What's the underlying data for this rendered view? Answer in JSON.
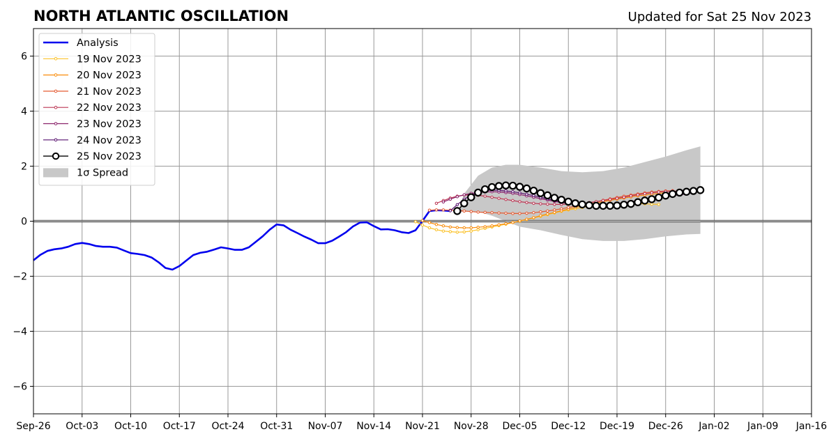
{
  "chart_data": {
    "type": "line",
    "title": "NORTH ATLANTIC OSCILLATION",
    "subtitle": "Updated for Sat 25 Nov 2023",
    "xlabel": "",
    "ylabel": "",
    "x_range": [
      "2023-09-26",
      "2024-01-16"
    ],
    "ylim": [
      -7,
      7
    ],
    "x_ticks": [
      "Sep-26",
      "Oct-03",
      "Oct-10",
      "Oct-17",
      "Oct-24",
      "Oct-31",
      "Nov-07",
      "Nov-14",
      "Nov-21",
      "Nov-28",
      "Dec-05",
      "Dec-12",
      "Dec-19",
      "Dec-26",
      "Jan-02",
      "Jan-09",
      "Jan-16"
    ],
    "y_ticks": [
      "6",
      "4",
      "2",
      "0",
      "−2",
      "−4",
      "−6"
    ],
    "y_tick_values": [
      6,
      4,
      2,
      0,
      -2,
      -4,
      -6
    ],
    "grid": true,
    "legend_position": "top-left",
    "series": [
      {
        "name": "Analysis",
        "color": "#0000ee",
        "x": [
          "2023-09-26",
          "2023-09-27",
          "2023-09-28",
          "2023-09-29",
          "2023-09-30",
          "2023-10-01",
          "2023-10-02",
          "2023-10-03",
          "2023-10-04",
          "2023-10-05",
          "2023-10-06",
          "2023-10-07",
          "2023-10-08",
          "2023-10-09",
          "2023-10-10",
          "2023-10-11",
          "2023-10-12",
          "2023-10-13",
          "2023-10-14",
          "2023-10-15",
          "2023-10-16",
          "2023-10-17",
          "2023-10-18",
          "2023-10-19",
          "2023-10-20",
          "2023-10-21",
          "2023-10-22",
          "2023-10-23",
          "2023-10-24",
          "2023-10-25",
          "2023-10-26",
          "2023-10-27",
          "2023-10-28",
          "2023-10-29",
          "2023-10-30",
          "2023-10-31",
          "2023-11-01",
          "2023-11-02",
          "2023-11-03",
          "2023-11-04",
          "2023-11-05",
          "2023-11-06",
          "2023-11-07",
          "2023-11-08",
          "2023-11-09",
          "2023-11-10",
          "2023-11-11",
          "2023-11-12",
          "2023-11-13",
          "2023-11-14",
          "2023-11-15",
          "2023-11-16",
          "2023-11-17",
          "2023-11-18",
          "2023-11-19",
          "2023-11-20",
          "2023-11-21",
          "2023-11-22",
          "2023-11-23",
          "2023-11-24",
          "2023-11-25"
        ],
        "values": [
          -1.42,
          -1.22,
          -1.08,
          -1.02,
          -0.99,
          -0.93,
          -0.83,
          -0.79,
          -0.83,
          -0.9,
          -0.93,
          -0.93,
          -0.96,
          -1.06,
          -1.16,
          -1.19,
          -1.23,
          -1.32,
          -1.49,
          -1.7,
          -1.76,
          -1.63,
          -1.43,
          -1.23,
          -1.15,
          -1.11,
          -1.03,
          -0.95,
          -0.99,
          -1.04,
          -1.04,
          -0.95,
          -0.75,
          -0.55,
          -0.31,
          -0.12,
          -0.15,
          -0.31,
          -0.43,
          -0.56,
          -0.67,
          -0.8,
          -0.8,
          -0.71,
          -0.56,
          -0.4,
          -0.19,
          -0.05,
          -0.04,
          -0.18,
          -0.3,
          -0.29,
          -0.33,
          -0.4,
          -0.43,
          -0.33,
          0.01,
          0.37,
          0.4,
          0.39,
          0.37
        ]
      },
      {
        "name": "19 Nov 2023",
        "color": "#fbc127",
        "x": [
          "2023-11-20",
          "2023-11-21",
          "2023-11-22",
          "2023-11-23",
          "2023-11-24",
          "2023-11-25",
          "2023-11-26",
          "2023-11-27",
          "2023-11-28",
          "2023-11-29",
          "2023-11-30",
          "2023-12-01",
          "2023-12-02",
          "2023-12-03",
          "2023-12-04",
          "2023-12-05",
          "2023-12-06",
          "2023-12-07",
          "2023-12-08",
          "2023-12-09",
          "2023-12-10",
          "2023-12-11",
          "2023-12-12",
          "2023-12-13",
          "2023-12-14",
          "2023-12-15",
          "2023-12-16",
          "2023-12-17",
          "2023-12-18",
          "2023-12-19",
          "2023-12-20",
          "2023-12-21",
          "2023-12-22",
          "2023-12-23",
          "2023-12-24",
          "2023-12-25"
        ],
        "values": [
          -0.02,
          -0.14,
          -0.24,
          -0.31,
          -0.36,
          -0.38,
          -0.4,
          -0.39,
          -0.36,
          -0.31,
          -0.26,
          -0.21,
          -0.16,
          -0.11,
          -0.05,
          0.0,
          0.06,
          0.12,
          0.18,
          0.24,
          0.3,
          0.36,
          0.41,
          0.45,
          0.5,
          0.54,
          0.57,
          0.6,
          0.62,
          0.64,
          0.65,
          0.65,
          0.64,
          0.63,
          0.62,
          0.61
        ]
      },
      {
        "name": "20 Nov 2023",
        "color": "#f98c0a",
        "x": [
          "2023-11-21",
          "2023-11-22",
          "2023-11-23",
          "2023-11-24",
          "2023-11-25",
          "2023-11-26",
          "2023-11-27",
          "2023-11-28",
          "2023-11-29",
          "2023-11-30",
          "2023-12-01",
          "2023-12-02",
          "2023-12-03",
          "2023-12-04",
          "2023-12-05",
          "2023-12-06",
          "2023-12-07",
          "2023-12-08",
          "2023-12-09",
          "2023-12-10",
          "2023-12-11",
          "2023-12-12",
          "2023-12-13",
          "2023-12-14",
          "2023-12-15",
          "2023-12-16",
          "2023-12-17",
          "2023-12-18",
          "2023-12-19",
          "2023-12-20",
          "2023-12-21",
          "2023-12-22",
          "2023-12-23",
          "2023-12-24",
          "2023-12-25",
          "2023-12-26"
        ],
        "values": [
          0.02,
          -0.05,
          -0.12,
          -0.17,
          -0.21,
          -0.23,
          -0.24,
          -0.24,
          -0.22,
          -0.2,
          -0.17,
          -0.13,
          -0.09,
          -0.05,
          0.01,
          0.07,
          0.13,
          0.2,
          0.26,
          0.32,
          0.38,
          0.44,
          0.5,
          0.56,
          0.61,
          0.66,
          0.71,
          0.76,
          0.8,
          0.84,
          0.88,
          0.92,
          0.95,
          0.98,
          1.01,
          1.04
        ]
      },
      {
        "name": "21 Nov 2023",
        "color": "#e45a31",
        "x": [
          "2023-11-22",
          "2023-11-23",
          "2023-11-24",
          "2023-11-25",
          "2023-11-26",
          "2023-11-27",
          "2023-11-28",
          "2023-11-29",
          "2023-11-30",
          "2023-12-01",
          "2023-12-02",
          "2023-12-03",
          "2023-12-04",
          "2023-12-05",
          "2023-12-06",
          "2023-12-07",
          "2023-12-08",
          "2023-12-09",
          "2023-12-10",
          "2023-12-11",
          "2023-12-12",
          "2023-12-13",
          "2023-12-14",
          "2023-12-15",
          "2023-12-16",
          "2023-12-17",
          "2023-12-18",
          "2023-12-19",
          "2023-12-20",
          "2023-12-21",
          "2023-12-22",
          "2023-12-23",
          "2023-12-24",
          "2023-12-25",
          "2023-12-26",
          "2023-12-27"
        ],
        "values": [
          0.4,
          0.41,
          0.41,
          0.4,
          0.39,
          0.37,
          0.35,
          0.33,
          0.32,
          0.31,
          0.3,
          0.29,
          0.28,
          0.28,
          0.29,
          0.31,
          0.34,
          0.37,
          0.41,
          0.45,
          0.5,
          0.55,
          0.6,
          0.66,
          0.71,
          0.76,
          0.81,
          0.86,
          0.91,
          0.95,
          0.99,
          1.03,
          1.06,
          1.08,
          1.1,
          1.11
        ]
      },
      {
        "name": "22 Nov 2023",
        "color": "#bc3754",
        "x": [
          "2023-11-23",
          "2023-11-24",
          "2023-11-25",
          "2023-11-26",
          "2023-11-27",
          "2023-11-28",
          "2023-11-29",
          "2023-11-30",
          "2023-12-01",
          "2023-12-02",
          "2023-12-03",
          "2023-12-04",
          "2023-12-05",
          "2023-12-06",
          "2023-12-07",
          "2023-12-08",
          "2023-12-09",
          "2023-12-10",
          "2023-12-11",
          "2023-12-12",
          "2023-12-13",
          "2023-12-14",
          "2023-12-15",
          "2023-12-16",
          "2023-12-17",
          "2023-12-18",
          "2023-12-19",
          "2023-12-20",
          "2023-12-21",
          "2023-12-22",
          "2023-12-23",
          "2023-12-24",
          "2023-12-25",
          "2023-12-26",
          "2023-12-27",
          "2023-12-28"
        ],
        "values": [
          0.65,
          0.75,
          0.84,
          0.91,
          0.95,
          0.96,
          0.94,
          0.91,
          0.87,
          0.83,
          0.79,
          0.75,
          0.71,
          0.68,
          0.65,
          0.63,
          0.62,
          0.61,
          0.61,
          0.62,
          0.63,
          0.65,
          0.68,
          0.71,
          0.75,
          0.79,
          0.83,
          0.87,
          0.92,
          0.96,
          1.0,
          1.03,
          1.06,
          1.08,
          1.09,
          1.1
        ]
      },
      {
        "name": "23 Nov 2023",
        "color": "#8a226a",
        "x": [
          "2023-11-24",
          "2023-11-25",
          "2023-11-26",
          "2023-11-27",
          "2023-11-28",
          "2023-11-29",
          "2023-11-30",
          "2023-12-01",
          "2023-12-02",
          "2023-12-03",
          "2023-12-04",
          "2023-12-05",
          "2023-12-06",
          "2023-12-07",
          "2023-12-08",
          "2023-12-09",
          "2023-12-10",
          "2023-12-11",
          "2023-12-12",
          "2023-12-13",
          "2023-12-14",
          "2023-12-15",
          "2023-12-16",
          "2023-12-17",
          "2023-12-18",
          "2023-12-19",
          "2023-12-20",
          "2023-12-21",
          "2023-12-22",
          "2023-12-23",
          "2023-12-24",
          "2023-12-25",
          "2023-12-26",
          "2023-12-27",
          "2023-12-28",
          "2023-12-29"
        ],
        "values": [
          0.7,
          0.8,
          0.89,
          0.96,
          1.01,
          1.04,
          1.06,
          1.07,
          1.06,
          1.04,
          1.01,
          0.97,
          0.92,
          0.87,
          0.82,
          0.77,
          0.72,
          0.68,
          0.64,
          0.61,
          0.59,
          0.58,
          0.58,
          0.59,
          0.61,
          0.64,
          0.67,
          0.71,
          0.75,
          0.79,
          0.83,
          0.87,
          0.9,
          0.93,
          0.96,
          0.99
        ]
      },
      {
        "name": "24 Nov 2023",
        "color": "#57106e",
        "x": [
          "2023-11-25",
          "2023-11-26",
          "2023-11-27",
          "2023-11-28",
          "2023-11-29",
          "2023-11-30",
          "2023-12-01",
          "2023-12-02",
          "2023-12-03",
          "2023-12-04",
          "2023-12-05",
          "2023-12-06",
          "2023-12-07",
          "2023-12-08",
          "2023-12-09",
          "2023-12-10",
          "2023-12-11",
          "2023-12-12",
          "2023-12-13",
          "2023-12-14",
          "2023-12-15",
          "2023-12-16",
          "2023-12-17",
          "2023-12-18",
          "2023-12-19",
          "2023-12-20",
          "2023-12-21",
          "2023-12-22",
          "2023-12-23",
          "2023-12-24",
          "2023-12-25",
          "2023-12-26",
          "2023-12-27",
          "2023-12-28",
          "2023-12-29",
          "2023-12-30"
        ],
        "values": [
          0.38,
          0.6,
          0.8,
          0.95,
          1.05,
          1.11,
          1.13,
          1.12,
          1.1,
          1.07,
          1.03,
          0.98,
          0.93,
          0.87,
          0.81,
          0.75,
          0.7,
          0.65,
          0.61,
          0.58,
          0.56,
          0.55,
          0.55,
          0.56,
          0.58,
          0.61,
          0.65,
          0.7,
          0.75,
          0.8,
          0.85,
          0.89,
          0.93,
          0.97,
          1.0,
          1.03
        ]
      },
      {
        "name": "25 Nov 2023",
        "color": "#000004",
        "x": [
          "2023-11-26",
          "2023-11-27",
          "2023-11-28",
          "2023-11-29",
          "2023-11-30",
          "2023-12-01",
          "2023-12-02",
          "2023-12-03",
          "2023-12-04",
          "2023-12-05",
          "2023-12-06",
          "2023-12-07",
          "2023-12-08",
          "2023-12-09",
          "2023-12-10",
          "2023-12-11",
          "2023-12-12",
          "2023-12-13",
          "2023-12-14",
          "2023-12-15",
          "2023-12-16",
          "2023-12-17",
          "2023-12-18",
          "2023-12-19",
          "2023-12-20",
          "2023-12-21",
          "2023-12-22",
          "2023-12-23",
          "2023-12-24",
          "2023-12-25",
          "2023-12-26",
          "2023-12-27",
          "2023-12-28",
          "2023-12-29",
          "2023-12-30",
          "2023-12-31"
        ],
        "values": [
          0.37,
          0.65,
          0.87,
          1.04,
          1.16,
          1.24,
          1.28,
          1.3,
          1.29,
          1.25,
          1.19,
          1.11,
          1.02,
          0.94,
          0.85,
          0.78,
          0.71,
          0.65,
          0.61,
          0.58,
          0.56,
          0.56,
          0.56,
          0.57,
          0.6,
          0.63,
          0.69,
          0.75,
          0.8,
          0.86,
          0.93,
          0.99,
          1.04,
          1.07,
          1.1,
          1.13
        ]
      }
    ],
    "spread": {
      "name": "1σ Spread",
      "color": "#c8c8c8",
      "x": [
        "2023-11-26",
        "2023-11-27",
        "2023-11-29",
        "2023-12-01",
        "2023-12-03",
        "2023-12-05",
        "2023-12-08",
        "2023-12-11",
        "2023-12-14",
        "2023-12-17",
        "2023-12-20",
        "2023-12-23",
        "2023-12-26",
        "2023-12-29",
        "2023-12-31"
      ],
      "upper": [
        0.3,
        1.0,
        1.65,
        1.95,
        2.05,
        2.05,
        1.95,
        1.82,
        1.78,
        1.82,
        1.95,
        2.15,
        2.35,
        2.58,
        2.72
      ],
      "lower": [
        0.3,
        0.35,
        0.35,
        0.2,
        0.0,
        -0.2,
        -0.33,
        -0.5,
        -0.65,
        -0.72,
        -0.72,
        -0.65,
        -0.55,
        -0.48,
        -0.46
      ]
    }
  }
}
